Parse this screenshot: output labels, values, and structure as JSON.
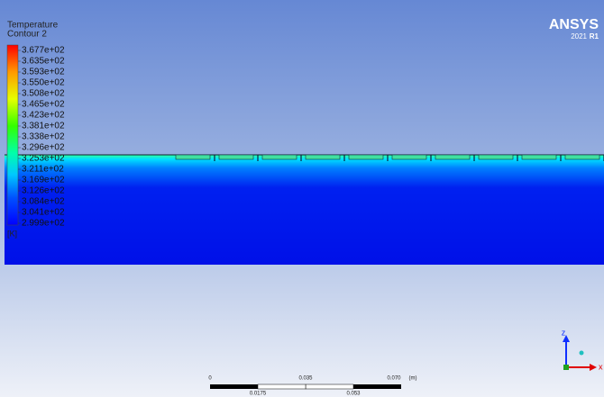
{
  "legend": {
    "title": "Temperature",
    "subtitle": "Contour 2",
    "levels": [
      "3.677e+02",
      "3.635e+02",
      "3.593e+02",
      "3.550e+02",
      "3.508e+02",
      "3.465e+02",
      "3.423e+02",
      "3.381e+02",
      "3.338e+02",
      "3.296e+02",
      "3.253e+02",
      "3.211e+02",
      "3.169e+02",
      "3.126e+02",
      "3.084e+02",
      "3.041e+02",
      "2.999e+02"
    ],
    "unit": "[K]"
  },
  "brand": {
    "name": "ANSYS",
    "year": "2021",
    "release": "R1"
  },
  "scale_bar": {
    "top_labels": [
      "0",
      "0.035",
      "0.070"
    ],
    "unit": "(m)",
    "bottom_labels": [
      "0.0175",
      "0.053"
    ]
  },
  "axes": {
    "vertical": "z",
    "horizontal": "x"
  }
}
